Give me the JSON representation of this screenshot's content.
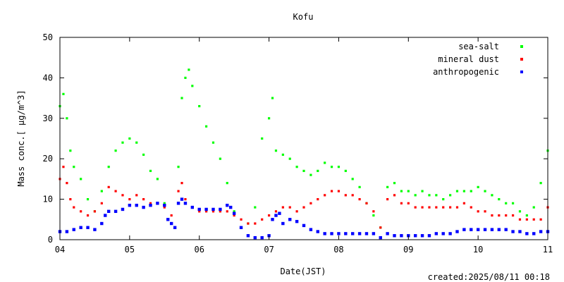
{
  "chart_data": {
    "type": "scatter",
    "title": "Kofu",
    "xlabel": "Date(JST)",
    "ylabel": "Mass conc.[ μg/m^3]",
    "created": "created:2025/08/11 00:18",
    "xlim": [
      4,
      11
    ],
    "ylim": [
      0,
      50
    ],
    "x_ticks": [
      {
        "value": 4,
        "label": "04"
      },
      {
        "value": 5,
        "label": "05"
      },
      {
        "value": 6,
        "label": "06"
      },
      {
        "value": 7,
        "label": "07"
      },
      {
        "value": 8,
        "label": "08"
      },
      {
        "value": 9,
        "label": "09"
      },
      {
        "value": 10,
        "label": "10"
      },
      {
        "value": 11,
        "label": "11"
      }
    ],
    "y_ticks": [
      0,
      10,
      20,
      30,
      40,
      50
    ],
    "legend_position": "top-right",
    "grid": false,
    "series": [
      {
        "name": "sea-salt",
        "color": "#00ff00",
        "x": [
          4.0,
          4.05,
          4.1,
          4.15,
          4.2,
          4.3,
          4.4,
          4.5,
          4.6,
          4.7,
          4.8,
          4.9,
          5.0,
          5.1,
          5.2,
          5.3,
          5.4,
          5.5,
          5.6,
          5.7,
          5.75,
          5.8,
          5.85,
          5.9,
          6.0,
          6.1,
          6.2,
          6.3,
          6.4,
          6.5,
          6.6,
          6.7,
          6.8,
          6.9,
          7.0,
          7.05,
          7.1,
          7.2,
          7.3,
          7.4,
          7.5,
          7.6,
          7.7,
          7.8,
          7.9,
          8.0,
          8.1,
          8.2,
          8.3,
          8.4,
          8.5,
          8.6,
          8.7,
          8.8,
          8.9,
          9.0,
          9.1,
          9.2,
          9.3,
          9.4,
          9.5,
          9.6,
          9.7,
          9.8,
          9.9,
          10.0,
          10.1,
          10.2,
          10.3,
          10.4,
          10.5,
          10.6,
          10.7,
          10.8,
          10.9,
          11.0
        ],
        "y": [
          33,
          36,
          30,
          22,
          18,
          15,
          10,
          7,
          12,
          18,
          22,
          24,
          25,
          24,
          21,
          17,
          15,
          9,
          4,
          18,
          35,
          40,
          42,
          38,
          33,
          28,
          24,
          20,
          14,
          7,
          3,
          4,
          8,
          25,
          30,
          35,
          22,
          21,
          20,
          18,
          17,
          16,
          17,
          19,
          18,
          18,
          17,
          15,
          13,
          9,
          6,
          3,
          13,
          14,
          12,
          12,
          11,
          12,
          11,
          11,
          10,
          11,
          12,
          12,
          12,
          13,
          12,
          11,
          10,
          9,
          9,
          7,
          6,
          8,
          14,
          22
        ]
      },
      {
        "name": "mineral dust",
        "color": "#ff0000",
        "x": [
          4.0,
          4.05,
          4.1,
          4.15,
          4.2,
          4.3,
          4.4,
          4.5,
          4.6,
          4.7,
          4.8,
          4.9,
          5.0,
          5.1,
          5.2,
          5.3,
          5.4,
          5.5,
          5.6,
          5.7,
          5.75,
          5.8,
          5.9,
          6.0,
          6.1,
          6.2,
          6.3,
          6.4,
          6.5,
          6.6,
          6.7,
          6.8,
          6.9,
          7.0,
          7.1,
          7.2,
          7.3,
          7.4,
          7.5,
          7.6,
          7.7,
          7.8,
          7.9,
          8.0,
          8.1,
          8.2,
          8.3,
          8.4,
          8.5,
          8.6,
          8.7,
          8.8,
          8.9,
          9.0,
          9.1,
          9.2,
          9.3,
          9.4,
          9.5,
          9.6,
          9.7,
          9.8,
          9.9,
          10.0,
          10.1,
          10.2,
          10.3,
          10.4,
          10.5,
          10.6,
          10.7,
          10.8,
          10.9,
          11.0
        ],
        "y": [
          15,
          18,
          14,
          10,
          8,
          7,
          6,
          7,
          9,
          13,
          12,
          11,
          10,
          11,
          10,
          9,
          9,
          8,
          6,
          12,
          14,
          10,
          8,
          7,
          7,
          7,
          7,
          7,
          6,
          5,
          4,
          4,
          5,
          6,
          7,
          8,
          8,
          7,
          8,
          9,
          10,
          11,
          12,
          12,
          11,
          11,
          10,
          9,
          7,
          3,
          10,
          11,
          9,
          9,
          8,
          8,
          8,
          8,
          8,
          8,
          8,
          9,
          8,
          7,
          7,
          6,
          6,
          6,
          6,
          5,
          5,
          5,
          5,
          8
        ]
      },
      {
        "name": "anthropogenic",
        "color": "#0000ff",
        "x": [
          4.0,
          4.1,
          4.2,
          4.3,
          4.4,
          4.5,
          4.6,
          4.65,
          4.7,
          4.8,
          4.9,
          5.0,
          5.1,
          5.2,
          5.3,
          5.4,
          5.5,
          5.55,
          5.6,
          5.65,
          5.7,
          5.75,
          5.8,
          5.9,
          6.0,
          6.1,
          6.2,
          6.3,
          6.4,
          6.45,
          6.5,
          6.6,
          6.7,
          6.8,
          6.9,
          7.0,
          7.05,
          7.1,
          7.15,
          7.2,
          7.3,
          7.4,
          7.5,
          7.6,
          7.7,
          7.8,
          7.9,
          8.0,
          8.1,
          8.2,
          8.3,
          8.4,
          8.5,
          8.6,
          8.7,
          8.8,
          8.9,
          9.0,
          9.1,
          9.2,
          9.3,
          9.4,
          9.5,
          9.6,
          9.7,
          9.8,
          9.9,
          10.0,
          10.1,
          10.2,
          10.3,
          10.4,
          10.5,
          10.6,
          10.7,
          10.8,
          10.9,
          11.0
        ],
        "y": [
          2,
          2,
          2.5,
          3,
          3,
          2.5,
          4,
          6,
          7,
          7,
          7.5,
          8.5,
          8.5,
          8,
          8.5,
          9,
          8.5,
          5,
          4,
          3,
          9,
          10,
          9,
          8,
          7.5,
          7.5,
          7.5,
          7.5,
          8.5,
          8,
          6.5,
          3,
          1,
          0.5,
          0.5,
          1,
          5,
          6,
          6.5,
          4,
          5,
          4.5,
          3.5,
          2.5,
          2,
          1.5,
          1.5,
          1.5,
          1.5,
          1.5,
          1.5,
          1.5,
          1.5,
          0.5,
          1.5,
          1,
          1,
          1,
          1,
          1,
          1,
          1.5,
          1.5,
          1.5,
          2,
          2.5,
          2.5,
          2.5,
          2.5,
          2.5,
          2.5,
          2.5,
          2,
          2,
          1.5,
          1.5,
          2,
          2
        ]
      }
    ]
  }
}
